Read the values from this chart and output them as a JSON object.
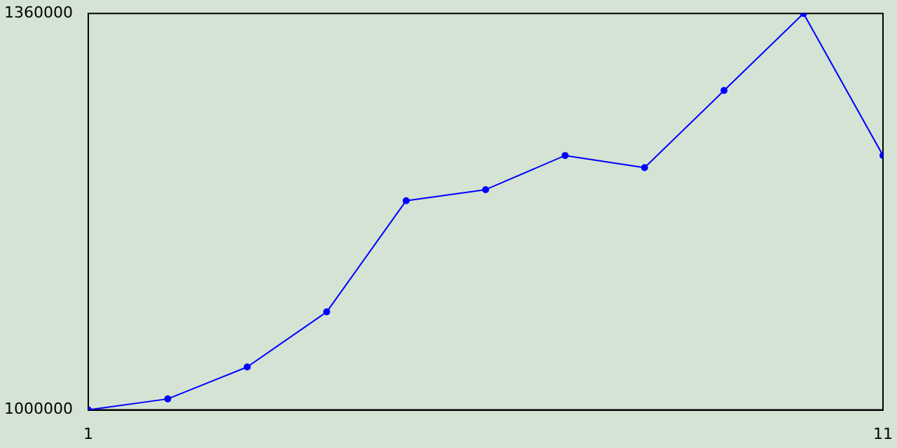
{
  "chart_data": {
    "type": "line",
    "x": [
      1,
      2,
      3,
      4,
      5,
      6,
      7,
      8,
      9,
      10,
      11
    ],
    "series": [
      {
        "color": "#0000ff",
        "values": [
          1000000,
          1010000,
          1039000,
          1089000,
          1190000,
          1200000,
          1231000,
          1220000,
          1290000,
          1360000,
          1231000
        ]
      }
    ],
    "xlim": [
      1,
      11
    ],
    "xticks": [
      1,
      11
    ],
    "ylim": [
      1000000,
      1360000
    ],
    "yticks": [
      1000000,
      1360000
    ],
    "grid": false,
    "legend": false,
    "marker": "circle",
    "line_style": "solid"
  }
}
